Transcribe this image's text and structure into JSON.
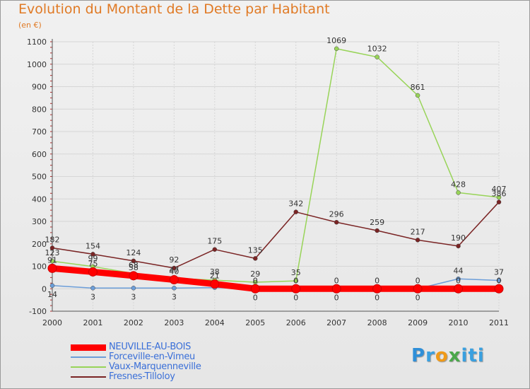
{
  "header": {
    "title": "Evolution du Montant de la Dette par Habitant",
    "unit": "(en €)"
  },
  "colors": {
    "title": "#e07a25",
    "legend_text": "#3a6fd8",
    "grid": "#d6d6d6",
    "axis": "#555555"
  },
  "chart_data": {
    "type": "line",
    "title": "Evolution du Montant de la Dette par Habitant",
    "ylabel": "(en €)",
    "xlabel": "",
    "x": [
      "2000",
      "2001",
      "2002",
      "2003",
      "2004",
      "2005",
      "2006",
      "2007",
      "2008",
      "2009",
      "2010",
      "2011"
    ],
    "ylim": [
      -100,
      1100
    ],
    "yticks": [
      -100,
      0,
      100,
      200,
      300,
      400,
      500,
      600,
      700,
      800,
      900,
      1000,
      1100
    ],
    "grid": true,
    "legend_position": "bottom-left",
    "series": [
      {
        "name": "NEUVILLE-AU-BOIS",
        "color": "#ff0000",
        "values": [
          91,
          75,
          58,
          40,
          21,
          0,
          0,
          0,
          0,
          0,
          0,
          0
        ],
        "labels": [
          "91",
          "75",
          "58",
          "40",
          "21",
          "0",
          "0",
          "0",
          "0",
          "0",
          "0",
          "0"
        ]
      },
      {
        "name": "Forceville-en-Vimeu",
        "color": "#6c9ed9",
        "values": [
          14,
          3,
          3,
          3,
          5,
          0,
          0,
          0,
          0,
          0,
          44,
          37
        ],
        "labels": [
          "14",
          "3",
          "3",
          "3",
          "",
          "0",
          "0",
          "0",
          "0",
          "0",
          "44",
          "37"
        ]
      },
      {
        "name": "Vaux-Marquenneville",
        "color": "#98d458",
        "values": [
          123,
          99,
          68,
          47,
          38,
          29,
          35,
          1069,
          1032,
          861,
          428,
          407
        ],
        "labels": [
          "123",
          "99",
          "68",
          "47",
          "38",
          "29",
          "35",
          "1069",
          "1032",
          "861",
          "428",
          "407"
        ]
      },
      {
        "name": "Fresnes-Tilloloy",
        "color": "#7a2424",
        "values": [
          182,
          154,
          124,
          92,
          175,
          135,
          342,
          296,
          259,
          217,
          190,
          386
        ],
        "labels": [
          "182",
          "154",
          "124",
          "92",
          "175",
          "135",
          "342",
          "296",
          "259",
          "217",
          "190",
          "386"
        ]
      }
    ]
  },
  "legend": [
    {
      "label": "NEUVILLE-AU-BOIS",
      "color": "#ff0000"
    },
    {
      "label": "Forceville-en-Vimeu",
      "color": "#6c9ed9"
    },
    {
      "label": "Vaux-Marquenneville",
      "color": "#98d458"
    },
    {
      "label": "Fresnes-Tilloloy",
      "color": "#7a2424"
    }
  ],
  "logo": {
    "text": "Proxiti",
    "letters": [
      "P",
      "r",
      "o",
      "x",
      "i",
      "t",
      "i"
    ],
    "letter_colors": [
      "#2f8fd8",
      "#3aa0e0",
      "#f09a18",
      "#4aa84a",
      "#3aa0e0",
      "#3aa0e0",
      "#3aa0e0"
    ]
  }
}
